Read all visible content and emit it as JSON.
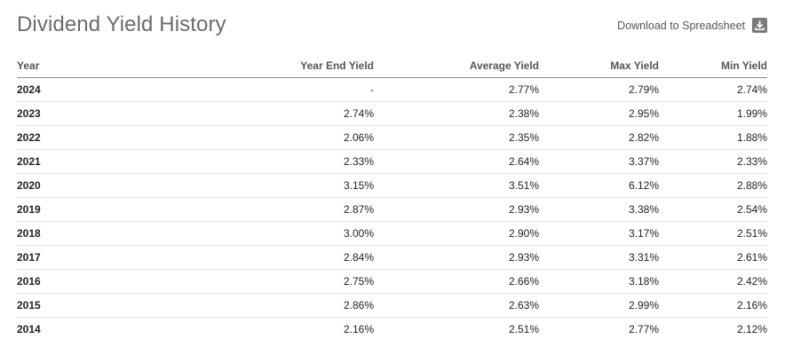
{
  "header": {
    "title": "Dividend Yield History",
    "download_label": "Download to Spreadsheet",
    "download_icon": "download-icon"
  },
  "table": {
    "columns": [
      "Year",
      "Year End Yield",
      "Average Yield",
      "Max Yield",
      "Min Yield"
    ],
    "rows": [
      [
        "2024",
        "-",
        "2.77%",
        "2.79%",
        "2.74%"
      ],
      [
        "2023",
        "2.74%",
        "2.38%",
        "2.95%",
        "1.99%"
      ],
      [
        "2022",
        "2.06%",
        "2.35%",
        "2.82%",
        "1.88%"
      ],
      [
        "2021",
        "2.33%",
        "2.64%",
        "3.37%",
        "2.33%"
      ],
      [
        "2020",
        "3.15%",
        "3.51%",
        "6.12%",
        "2.88%"
      ],
      [
        "2019",
        "2.87%",
        "2.93%",
        "3.38%",
        "2.54%"
      ],
      [
        "2018",
        "3.00%",
        "2.90%",
        "3.17%",
        "2.51%"
      ],
      [
        "2017",
        "2.84%",
        "2.93%",
        "3.31%",
        "2.61%"
      ],
      [
        "2016",
        "2.75%",
        "2.66%",
        "3.18%",
        "2.42%"
      ],
      [
        "2015",
        "2.86%",
        "2.63%",
        "2.99%",
        "2.16%"
      ],
      [
        "2014",
        "2.16%",
        "2.51%",
        "2.77%",
        "2.12%"
      ]
    ]
  },
  "colors": {
    "title": "#6b6b6b",
    "header_text": "#555555",
    "row_divider": "#e3e3e3",
    "header_divider": "#8a8a8a"
  }
}
